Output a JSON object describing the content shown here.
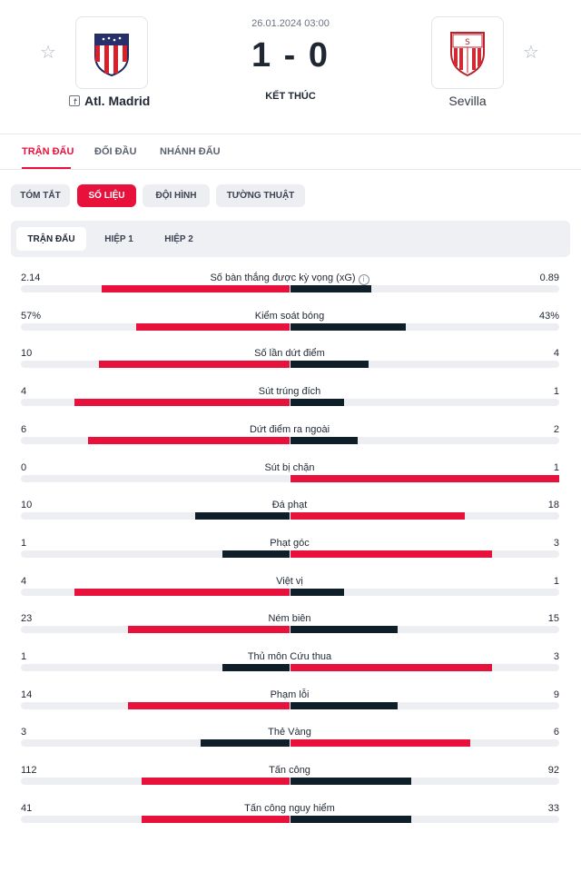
{
  "match": {
    "datetime": "26.01.2024 03:00",
    "score": "1 - 0",
    "status": "KẾT THÚC",
    "home": {
      "name": "Atl. Madrid",
      "logo": "atletico-madrid-crest"
    },
    "away": {
      "name": "Sevilla",
      "logo": "sevilla-crest"
    }
  },
  "main_tabs": [
    "TRẬN ĐẤU",
    "ĐỐI ĐẦU",
    "NHÁNH ĐẤU"
  ],
  "sub_tabs": [
    "TÓM TẮT",
    "SỐ LIỆU",
    "ĐỘI HÌNH",
    "TƯỜNG THUẬT"
  ],
  "period_tabs": [
    "TRẬN ĐẤU",
    "HIỆP 1",
    "HIỆP 2"
  ],
  "colors": {
    "accent": "#e8113c",
    "dark": "#0f1f2a",
    "track": "#edeef1"
  },
  "stats": [
    {
      "label": "Số bàn thắng được kỳ vọng (xG)",
      "home": "2.14",
      "away": "0.89",
      "home_frac": 0.7,
      "away_frac": 0.3,
      "winner": "home",
      "info": true
    },
    {
      "label": "Kiểm soát bóng",
      "home": "57%",
      "away": "43%",
      "home_frac": 0.57,
      "away_frac": 0.43,
      "winner": "home"
    },
    {
      "label": "Số lần dứt điểm",
      "home": "10",
      "away": "4",
      "home_frac": 0.71,
      "away_frac": 0.29,
      "winner": "home"
    },
    {
      "label": "Sút trúng đích",
      "home": "4",
      "away": "1",
      "home_frac": 0.8,
      "away_frac": 0.2,
      "winner": "home"
    },
    {
      "label": "Dứt điểm ra ngoài",
      "home": "6",
      "away": "2",
      "home_frac": 0.75,
      "away_frac": 0.25,
      "winner": "home"
    },
    {
      "label": "Sút bị chặn",
      "home": "0",
      "away": "1",
      "home_frac": 0.0,
      "away_frac": 1.0,
      "winner": "away"
    },
    {
      "label": "Đá phạt",
      "home": "10",
      "away": "18",
      "home_frac": 0.35,
      "away_frac": 0.65,
      "winner": "away"
    },
    {
      "label": "Phạt góc",
      "home": "1",
      "away": "3",
      "home_frac": 0.25,
      "away_frac": 0.75,
      "winner": "away"
    },
    {
      "label": "Việt vị",
      "home": "4",
      "away": "1",
      "home_frac": 0.8,
      "away_frac": 0.2,
      "winner": "home"
    },
    {
      "label": "Ném biên",
      "home": "23",
      "away": "15",
      "home_frac": 0.6,
      "away_frac": 0.4,
      "winner": "home"
    },
    {
      "label": "Thủ môn Cứu thua",
      "home": "1",
      "away": "3",
      "home_frac": 0.25,
      "away_frac": 0.75,
      "winner": "away"
    },
    {
      "label": "Phạm lỗi",
      "home": "14",
      "away": "9",
      "home_frac": 0.6,
      "away_frac": 0.4,
      "winner": "home"
    },
    {
      "label": "Thẻ Vàng",
      "home": "3",
      "away": "6",
      "home_frac": 0.33,
      "away_frac": 0.67,
      "winner": "away"
    },
    {
      "label": "Tấn công",
      "home": "112",
      "away": "92",
      "home_frac": 0.55,
      "away_frac": 0.45,
      "winner": "home"
    },
    {
      "label": "Tấn công nguy hiểm",
      "home": "41",
      "away": "33",
      "home_frac": 0.55,
      "away_frac": 0.45,
      "winner": "home"
    }
  ]
}
